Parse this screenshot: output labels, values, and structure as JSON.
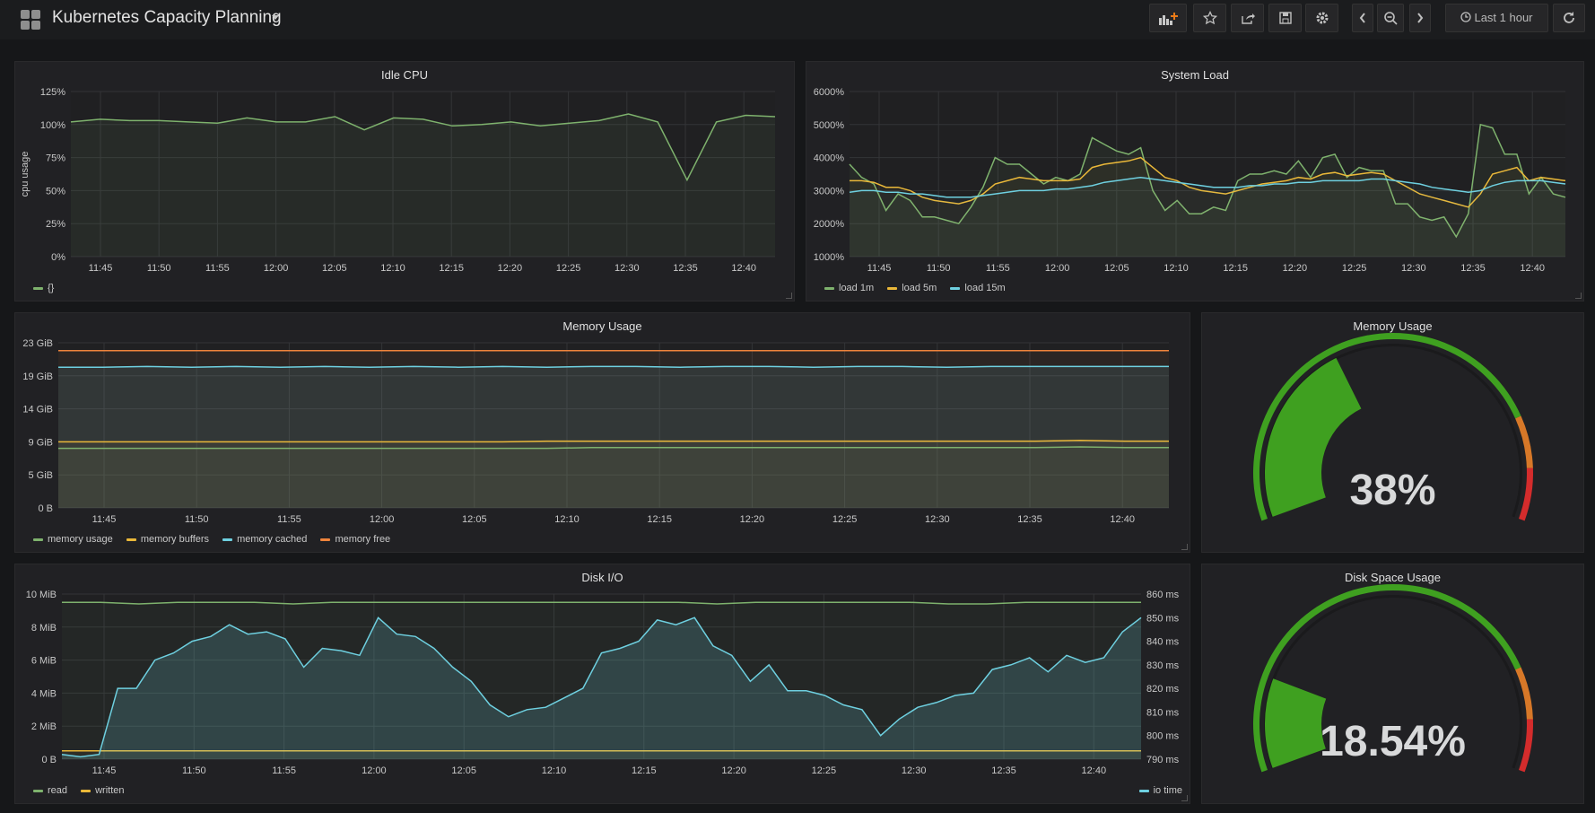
{
  "header": {
    "title": "Kubernetes Capacity Planning",
    "time_range": "Last 1 hour"
  },
  "icons": {
    "add_panel": "add-panel-icon",
    "star": "star-icon",
    "share": "share-icon",
    "save": "save-icon",
    "settings": "gear-icon",
    "prev": "chevron-left-icon",
    "zoom": "zoom-out-icon",
    "next": "chevron-right-icon",
    "clock": "clock-icon",
    "refresh": "refresh-icon"
  },
  "colors": {
    "green": "#7eb26d",
    "yellow": "#eab839",
    "blue": "#6ed0e0",
    "orange": "#ef843c",
    "gauge_green": "#3fa020",
    "gauge_orange": "#d77828",
    "gauge_red": "#d42c2c",
    "accent": "#eb7b18"
  },
  "panels": {
    "idle_cpu": {
      "title": "Idle CPU",
      "ylabel": "cpu usage",
      "yticks": [
        "125%",
        "100%",
        "75%",
        "50%",
        "25%",
        "0%"
      ],
      "xticks": [
        "11:45",
        "11:50",
        "11:55",
        "12:00",
        "12:05",
        "12:10",
        "12:15",
        "12:20",
        "12:25",
        "12:30",
        "12:35",
        "12:40"
      ],
      "legend": [
        {
          "name": "{}",
          "color": "#7eb26d"
        }
      ]
    },
    "system_load": {
      "title": "System Load",
      "yticks": [
        "6000%",
        "5000%",
        "4000%",
        "3000%",
        "2000%",
        "1000%"
      ],
      "xticks": [
        "11:45",
        "11:50",
        "11:55",
        "12:00",
        "12:05",
        "12:10",
        "12:15",
        "12:20",
        "12:25",
        "12:30",
        "12:35",
        "12:40"
      ],
      "legend": [
        {
          "name": "load 1m",
          "color": "#7eb26d"
        },
        {
          "name": "load 5m",
          "color": "#eab839"
        },
        {
          "name": "load 15m",
          "color": "#6ed0e0"
        }
      ]
    },
    "memory_usage": {
      "title": "Memory Usage",
      "yticks": [
        "23 GiB",
        "19 GiB",
        "14 GiB",
        "9 GiB",
        "5 GiB",
        "0 B"
      ],
      "xticks": [
        "11:45",
        "11:50",
        "11:55",
        "12:00",
        "12:05",
        "12:10",
        "12:15",
        "12:20",
        "12:25",
        "12:30",
        "12:35",
        "12:40"
      ],
      "legend": [
        {
          "name": "memory usage",
          "color": "#7eb26d"
        },
        {
          "name": "memory buffers",
          "color": "#eab839"
        },
        {
          "name": "memory cached",
          "color": "#6ed0e0"
        },
        {
          "name": "memory free",
          "color": "#ef843c"
        }
      ]
    },
    "memory_gauge": {
      "title": "Memory Usage",
      "value_text": "38%",
      "value": 38
    },
    "disk_io": {
      "title": "Disk I/O",
      "yticks_left": [
        "10 MiB",
        "8 MiB",
        "6 MiB",
        "4 MiB",
        "2 MiB",
        "0 B"
      ],
      "yticks_right": [
        "860 ms",
        "850 ms",
        "840 ms",
        "830 ms",
        "820 ms",
        "810 ms",
        "800 ms",
        "790 ms"
      ],
      "xticks": [
        "11:45",
        "11:50",
        "11:55",
        "12:00",
        "12:05",
        "12:10",
        "12:15",
        "12:20",
        "12:25",
        "12:30",
        "12:35",
        "12:40"
      ],
      "legend_left": [
        {
          "name": "read",
          "color": "#7eb26d"
        },
        {
          "name": "written",
          "color": "#eab839"
        }
      ],
      "legend_right": [
        {
          "name": "io time",
          "color": "#6ed0e0"
        }
      ]
    },
    "disk_gauge": {
      "title": "Disk Space Usage",
      "value_text": "18.54%",
      "value": 18.54
    }
  },
  "chart_data": [
    {
      "type": "line",
      "title": "Idle CPU",
      "ylabel": "cpu usage",
      "ylim": [
        0,
        125
      ],
      "x": [
        "11:43",
        "11:45",
        "11:48",
        "11:50",
        "11:53",
        "11:55",
        "11:58",
        "12:00",
        "12:03",
        "12:05",
        "12:07",
        "12:10",
        "12:13",
        "12:15",
        "12:18",
        "12:20",
        "12:23",
        "12:25",
        "12:28",
        "12:30",
        "12:33",
        "12:35",
        "12:38",
        "12:40",
        "12:42"
      ],
      "series": [
        {
          "name": "{}",
          "color": "#7eb26d",
          "values": [
            102,
            104,
            103,
            103,
            102,
            101,
            105,
            102,
            102,
            106,
            96,
            105,
            104,
            99,
            100,
            102,
            99,
            101,
            103,
            108,
            102,
            58,
            102,
            107,
            106
          ]
        }
      ]
    },
    {
      "type": "line",
      "title": "System Load",
      "ylim": [
        1000,
        6000
      ],
      "series": [
        {
          "name": "load 1m",
          "color": "#7eb26d",
          "values": [
            3800,
            3400,
            3200,
            2400,
            2900,
            2700,
            2200,
            2200,
            2100,
            2000,
            2500,
            3100,
            4000,
            3800,
            3800,
            3500,
            3200,
            3400,
            3300,
            3500,
            4600,
            4400,
            4200,
            4100,
            4300,
            3000,
            2400,
            2700,
            2300,
            2300,
            2500,
            2400,
            3300,
            3500,
            3500,
            3600,
            3500,
            3900,
            3400,
            4000,
            4100,
            3400,
            3700,
            3600,
            3600,
            2600,
            2600,
            2200,
            2100,
            2200,
            1600,
            2300,
            5000,
            4900,
            4100,
            4100,
            2900,
            3400,
            2900,
            2800
          ]
        },
        {
          "name": "load 5m",
          "color": "#eab839",
          "values": [
            3300,
            3300,
            3250,
            3100,
            3100,
            3000,
            2800,
            2700,
            2650,
            2600,
            2700,
            2900,
            3200,
            3300,
            3400,
            3350,
            3300,
            3300,
            3300,
            3350,
            3700,
            3800,
            3850,
            3900,
            4000,
            3700,
            3400,
            3300,
            3100,
            3000,
            2950,
            2900,
            3000,
            3100,
            3200,
            3250,
            3300,
            3400,
            3350,
            3500,
            3550,
            3450,
            3500,
            3550,
            3500,
            3300,
            3100,
            2900,
            2800,
            2700,
            2600,
            2500,
            2900,
            3500,
            3600,
            3700,
            3300,
            3400,
            3350,
            3300
          ]
        },
        {
          "name": "load 15m",
          "color": "#6ed0e0",
          "values": [
            2950,
            3000,
            3000,
            2950,
            2950,
            2900,
            2900,
            2850,
            2800,
            2800,
            2800,
            2850,
            2900,
            2950,
            3000,
            3000,
            3000,
            3050,
            3050,
            3100,
            3150,
            3250,
            3300,
            3350,
            3400,
            3350,
            3300,
            3250,
            3200,
            3150,
            3100,
            3100,
            3100,
            3150,
            3150,
            3200,
            3200,
            3250,
            3250,
            3300,
            3300,
            3300,
            3300,
            3350,
            3350,
            3300,
            3250,
            3200,
            3100,
            3050,
            3000,
            2950,
            3000,
            3150,
            3250,
            3300,
            3300,
            3300,
            3250,
            3200
          ]
        }
      ]
    },
    {
      "type": "area",
      "title": "Memory Usage",
      "ylim": [
        0,
        23
      ],
      "series": [
        {
          "name": "memory usage",
          "color": "#7eb26d",
          "values": [
            8.3,
            8.3,
            8.3,
            8.3,
            8.3,
            8.3,
            8.3,
            8.3,
            8.3,
            8.3,
            8.3,
            8.3,
            8.4,
            8.4,
            8.4,
            8.4,
            8.4,
            8.4,
            8.4,
            8.4,
            8.4,
            8.4,
            8.4,
            8.5,
            8.4,
            8.4
          ]
        },
        {
          "name": "memory buffers",
          "color": "#eab839",
          "values": [
            9.2,
            9.2,
            9.2,
            9.2,
            9.2,
            9.2,
            9.2,
            9.2,
            9.2,
            9.2,
            9.2,
            9.3,
            9.3,
            9.3,
            9.3,
            9.3,
            9.3,
            9.3,
            9.3,
            9.3,
            9.3,
            9.3,
            9.3,
            9.4,
            9.3,
            9.3
          ]
        },
        {
          "name": "memory cached",
          "color": "#6ed0e0",
          "values": [
            19.6,
            19.6,
            19.7,
            19.6,
            19.7,
            19.6,
            19.7,
            19.6,
            19.7,
            19.6,
            19.7,
            19.6,
            19.7,
            19.7,
            19.6,
            19.7,
            19.7,
            19.6,
            19.7,
            19.7,
            19.6,
            19.7,
            19.7,
            19.7,
            19.7,
            19.7
          ]
        },
        {
          "name": "memory free",
          "color": "#ef843c",
          "values": [
            21.9,
            21.9,
            21.9,
            21.9,
            21.9,
            21.9,
            21.9,
            21.9,
            21.9,
            21.9,
            21.9,
            21.9,
            21.9,
            21.9,
            21.9,
            21.9,
            21.9,
            21.9,
            21.9,
            21.9,
            21.9,
            21.9,
            21.9,
            21.9,
            21.9,
            21.9
          ]
        }
      ]
    },
    {
      "type": "line",
      "title": "Disk I/O",
      "ylim": [
        0,
        10
      ],
      "y2lim": [
        790,
        860
      ],
      "series": [
        {
          "name": "read",
          "color": "#7eb26d",
          "axis": "left",
          "values": [
            9.5,
            9.5,
            9.4,
            9.5,
            9.5,
            9.5,
            9.4,
            9.5,
            9.5,
            9.5,
            9.5,
            9.5,
            9.5,
            9.5,
            9.5,
            9.5,
            9.5,
            9.4,
            9.5,
            9.5,
            9.5,
            9.5,
            9.5,
            9.4,
            9.4,
            9.5,
            9.5,
            9.5,
            9.5
          ]
        },
        {
          "name": "written",
          "color": "#eab839",
          "axis": "left",
          "values": [
            0.5,
            0.5,
            0.5,
            0.5,
            0.5,
            0.5,
            0.5,
            0.5,
            0.5,
            0.5,
            0.5,
            0.5,
            0.5,
            0.5,
            0.5,
            0.5,
            0.5,
            0.5,
            0.5,
            0.5,
            0.5,
            0.5,
            0.5,
            0.5,
            0.5,
            0.5,
            0.5,
            0.5,
            0.5
          ]
        },
        {
          "name": "io time",
          "color": "#6ed0e0",
          "axis": "right",
          "values": [
            792,
            791,
            792,
            820,
            820,
            832,
            835,
            840,
            842,
            847,
            843,
            844,
            841,
            829,
            837,
            836,
            834,
            850,
            843,
            842,
            837,
            829,
            823,
            813,
            808,
            811,
            812,
            816,
            820,
            835,
            837,
            840,
            849,
            847,
            850,
            838,
            834,
            823,
            830,
            819,
            819,
            817,
            813,
            811,
            800,
            807,
            812,
            814,
            817,
            818,
            828,
            830,
            833,
            827,
            834,
            831,
            833,
            844,
            850
          ]
        }
      ]
    },
    {
      "type": "gauge",
      "title": "Memory Usage",
      "value": 38,
      "min": 0,
      "max": 100,
      "thresholds": [
        80,
        90
      ]
    },
    {
      "type": "gauge",
      "title": "Disk Space Usage",
      "value": 18.54,
      "min": 0,
      "max": 100,
      "thresholds": [
        80,
        90
      ]
    }
  ]
}
